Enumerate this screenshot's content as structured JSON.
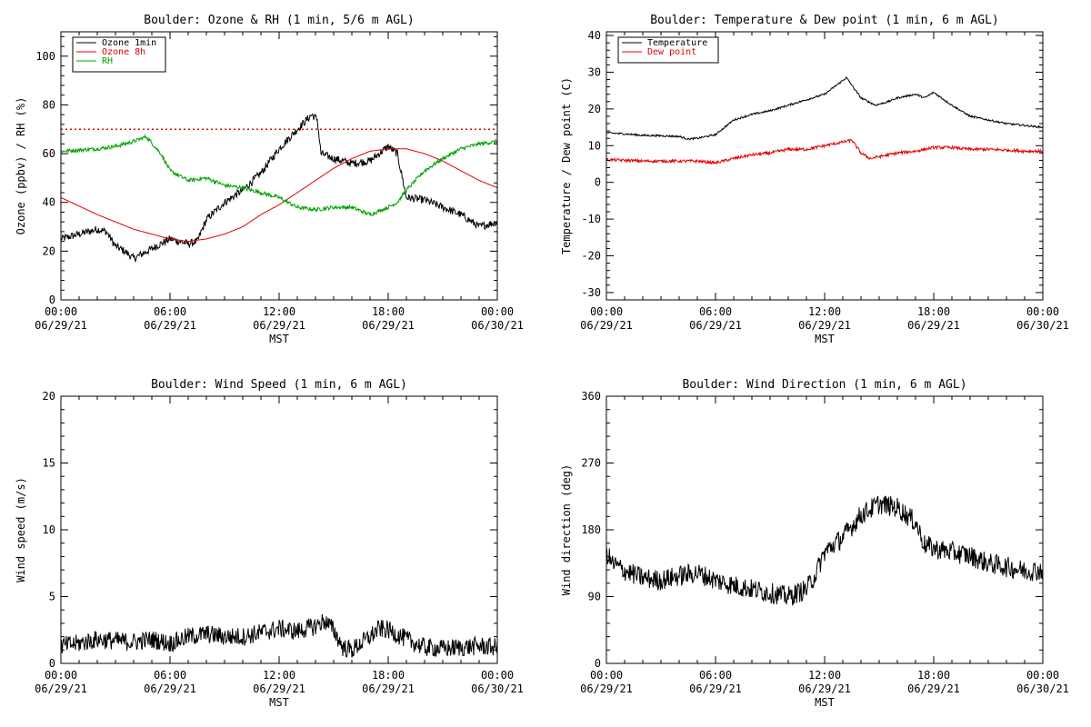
{
  "figure": {
    "x_axis_label": "MST"
  },
  "x_ticks": [
    {
      "hour": 0,
      "time": "00:00",
      "date": "06/29/21"
    },
    {
      "hour": 6,
      "time": "06:00",
      "date": "06/29/21"
    },
    {
      "hour": 12,
      "time": "12:00",
      "date": "06/29/21"
    },
    {
      "hour": 18,
      "time": "18:00",
      "date": "06/29/21"
    },
    {
      "hour": 24,
      "time": "00:00",
      "date": "06/30/21"
    }
  ],
  "chart_data": [
    {
      "id": "ozone_rh",
      "type": "line",
      "title": "Boulder: Ozone & RH (1 min, 5/6 m AGL)",
      "xlabel": "MST",
      "ylabel": "Ozone (ppbv) / RH (%)",
      "xlim": [
        0,
        24
      ],
      "ylim": [
        0,
        110
      ],
      "yticks": [
        0,
        20,
        40,
        60,
        80,
        100
      ],
      "legend": "top-left",
      "reference_line": {
        "y": 70,
        "color": "#e00000",
        "style": "dotted"
      },
      "series": [
        {
          "name": "Ozone 1min",
          "color": "#000000",
          "noise": 1.6,
          "x": [
            0,
            1,
            2,
            2.5,
            3,
            3.5,
            4,
            4.5,
            5,
            6,
            7,
            7.5,
            8,
            9,
            10,
            11,
            12,
            13,
            13.8,
            14.1,
            14.3,
            15,
            16,
            17,
            18,
            18.5,
            19,
            20,
            21,
            22,
            23,
            24
          ],
          "y": [
            25,
            27,
            29,
            28,
            22,
            20,
            17,
            19,
            21,
            25,
            23,
            24,
            33,
            40,
            45,
            52,
            62,
            70,
            76,
            74,
            60,
            58,
            56,
            57,
            63,
            60,
            42,
            41,
            38,
            35,
            30,
            32
          ]
        },
        {
          "name": "Ozone 8h",
          "color": "#e00000",
          "noise": 0,
          "x": [
            0,
            2,
            4,
            6,
            7,
            8,
            9,
            10,
            11,
            12,
            13,
            14,
            15,
            16,
            17,
            18,
            19,
            20,
            21,
            22,
            23,
            24
          ],
          "y": [
            42,
            35,
            29,
            25,
            24,
            25,
            27,
            30,
            35,
            39,
            44,
            49,
            54,
            58,
            61,
            62,
            62,
            60,
            57,
            53,
            49,
            46
          ]
        },
        {
          "name": "RH",
          "color": "#00a000",
          "noise": 0.8,
          "x": [
            0,
            2,
            3,
            4,
            4.7,
            5.5,
            6,
            7,
            8,
            9,
            10,
            11,
            12,
            13,
            14,
            15,
            16,
            17,
            18,
            18.5,
            19,
            20,
            21,
            22,
            23,
            24
          ],
          "y": [
            61,
            62,
            63,
            65,
            67,
            60,
            53,
            49,
            50,
            47,
            46,
            44,
            42,
            38,
            37,
            38,
            38,
            35,
            38,
            40,
            45,
            53,
            58,
            62,
            64,
            65
          ]
        }
      ]
    },
    {
      "id": "temp_dew",
      "type": "line",
      "title": "Boulder: Temperature & Dew point (1 min, 6 m AGL)",
      "xlabel": "MST",
      "ylabel": "Temperature / Dew point (C)",
      "xlim": [
        0,
        24
      ],
      "ylim": [
        -32,
        41
      ],
      "yticks": [
        -30,
        -20,
        -10,
        0,
        10,
        20,
        30,
        40
      ],
      "legend": "top-left",
      "series": [
        {
          "name": "Temperature",
          "color": "#000000",
          "noise": 0.25,
          "x": [
            0,
            1,
            2,
            3,
            4,
            4.5,
            5,
            6,
            6.5,
            7,
            8,
            9,
            10,
            11,
            12,
            12.8,
            13.2,
            14,
            14.8,
            15.5,
            16,
            17,
            17.5,
            18,
            19,
            20,
            21,
            22,
            23,
            24
          ],
          "y": [
            13.5,
            13.2,
            12.8,
            12.7,
            12.5,
            11.8,
            12,
            13,
            15,
            17,
            18.5,
            19.5,
            21,
            22.5,
            24,
            27,
            28.5,
            23,
            21,
            22,
            23,
            24,
            23,
            24.5,
            21,
            18,
            17,
            16,
            15.5,
            15
          ]
        },
        {
          "name": "Dew point",
          "color": "#e00000",
          "noise": 0.4,
          "x": [
            0,
            2,
            4,
            5,
            6,
            7,
            8,
            9,
            10,
            11,
            12,
            13,
            13.5,
            14,
            14.5,
            15,
            16,
            17,
            18,
            19,
            20,
            21,
            22,
            23,
            24
          ],
          "y": [
            6.2,
            5.8,
            5.8,
            5.8,
            5.3,
            6.5,
            7.5,
            8,
            9,
            9,
            10,
            11,
            11.5,
            8,
            6.5,
            7,
            8,
            8.5,
            9.5,
            9.5,
            9,
            9,
            8.8,
            8.5,
            8.5
          ]
        }
      ]
    },
    {
      "id": "wind_speed",
      "type": "line",
      "title": "Boulder: Wind Speed (1 min, 6 m AGL)",
      "xlabel": "MST",
      "ylabel": "Wind speed (m/s)",
      "xlim": [
        0,
        24
      ],
      "ylim": [
        0,
        20
      ],
      "yticks": [
        0,
        5,
        10,
        15,
        20
      ],
      "series": [
        {
          "name": "",
          "color": "#000000",
          "noise": 0.7,
          "x": [
            0,
            1,
            2,
            3,
            4,
            5,
            6,
            7,
            8,
            9,
            10,
            11,
            12,
            13,
            14,
            14.5,
            15,
            15.5,
            16,
            17,
            17.5,
            18,
            19,
            20,
            21,
            22,
            23,
            24
          ],
          "y": [
            1.3,
            1.5,
            1.8,
            1.7,
            1.6,
            1.8,
            1.5,
            2,
            2.2,
            2,
            2,
            2.3,
            2.6,
            2.4,
            2.8,
            3.2,
            2.5,
            1.2,
            1,
            2,
            2.6,
            2.5,
            1.8,
            1.2,
            1.1,
            1.2,
            1.3,
            1.2
          ]
        }
      ]
    },
    {
      "id": "wind_dir",
      "type": "line",
      "title": "Boulder: Wind Direction (1 min, 6 m AGL)",
      "xlabel": "MST",
      "ylabel": "Wind direction (deg)",
      "xlim": [
        0,
        24
      ],
      "ylim": [
        0,
        360
      ],
      "yticks": [
        0,
        90,
        180,
        270,
        360
      ],
      "series": [
        {
          "name": "",
          "color": "#000000",
          "noise": 14,
          "x": [
            0,
            0.3,
            1,
            2,
            3,
            4,
            5,
            6,
            7,
            8,
            9,
            10,
            11,
            11.5,
            12,
            13,
            14,
            15,
            16,
            17,
            17.5,
            18,
            19,
            20,
            21,
            22,
            23,
            24
          ],
          "y": [
            150,
            135,
            125,
            115,
            112,
            118,
            122,
            112,
            105,
            100,
            95,
            90,
            100,
            120,
            150,
            170,
            200,
            215,
            210,
            190,
            160,
            155,
            150,
            145,
            135,
            130,
            125,
            125
          ]
        }
      ]
    }
  ]
}
